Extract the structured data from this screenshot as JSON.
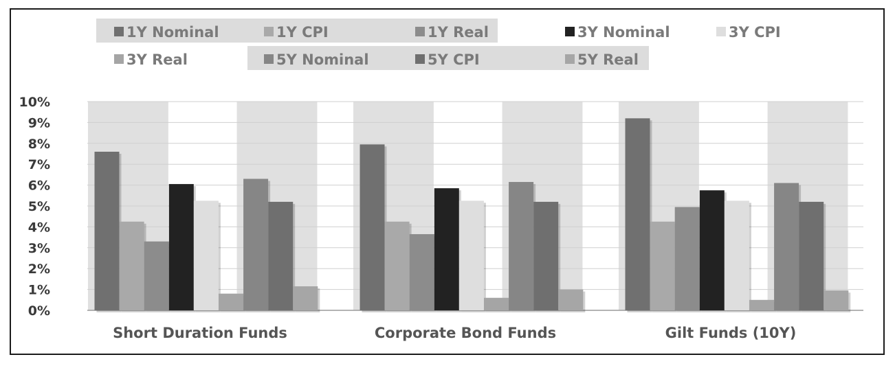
{
  "chart_data": {
    "type": "bar",
    "categories": [
      "Short Duration Funds",
      "Corporate Bond Funds",
      "Gilt Funds (10Y)"
    ],
    "series": [
      {
        "name": "1Y Nominal",
        "color": "#707070",
        "values": [
          7.6,
          7.95,
          9.2
        ]
      },
      {
        "name": "1Y CPI",
        "color": "#a9a9a9",
        "values": [
          4.25,
          4.25,
          4.25
        ]
      },
      {
        "name": "1Y Real",
        "color": "#8c8c8c",
        "values": [
          3.3,
          3.65,
          4.95
        ]
      },
      {
        "name": "3Y Nominal",
        "color": "#222222",
        "values": [
          6.05,
          5.85,
          5.75
        ]
      },
      {
        "name": "3Y CPI",
        "color": "#dedede",
        "values": [
          5.25,
          5.25,
          5.25
        ]
      },
      {
        "name": "3Y Real",
        "color": "#a5a5a5",
        "values": [
          0.8,
          0.6,
          0.5
        ]
      },
      {
        "name": "5Y Nominal",
        "color": "#868686",
        "values": [
          6.3,
          6.15,
          6.1
        ]
      },
      {
        "name": "5Y CPI",
        "color": "#6f6f6f",
        "values": [
          5.2,
          5.2,
          5.2
        ]
      },
      {
        "name": "5Y Real",
        "color": "#a6a6a6",
        "values": [
          1.15,
          1.0,
          0.95
        ]
      }
    ],
    "ylim": [
      0,
      10
    ],
    "yticks": [
      "0%",
      "1%",
      "2%",
      "3%",
      "4%",
      "5%",
      "6%",
      "7%",
      "8%",
      "9%",
      "10%"
    ],
    "grid": true,
    "legend_position": "top",
    "title": "",
    "xlabel": "",
    "ylabel": ""
  }
}
